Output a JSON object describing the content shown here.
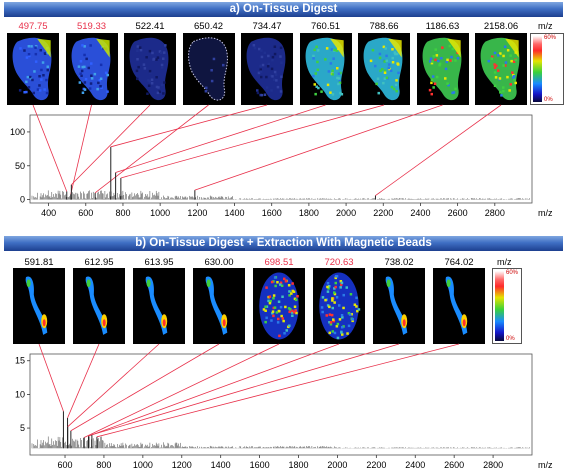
{
  "panel_a": {
    "title": "a)   On-Tissue Digest",
    "image_labels": [
      "497.75",
      "519.33",
      "522.41",
      "650.42",
      "734.47",
      "760.51",
      "788.66",
      "1186.63",
      "2158.06"
    ],
    "label_colors": [
      "#e8304a",
      "#e8304a",
      "#000000",
      "#000000",
      "#000000",
      "#000000",
      "#000000",
      "#000000",
      "#000000"
    ],
    "colorbar": {
      "unit": "m/z",
      "top": "60%",
      "bottom": "0%"
    }
  },
  "panel_b": {
    "title": "b)   On-Tissue Digest + Extraction With Magnetic Beads",
    "image_labels": [
      "591.81",
      "612.95",
      "613.95",
      "630.00",
      "698.51",
      "720.63",
      "738.02",
      "764.02"
    ],
    "label_colors": [
      "#000000",
      "#000000",
      "#000000",
      "#000000",
      "#e8304a",
      "#e8304a",
      "#000000",
      "#000000"
    ],
    "colorbar": {
      "unit": "m/z",
      "top": "60%",
      "bottom": "0%"
    }
  },
  "chart_data": [
    {
      "type": "line",
      "title": "",
      "xlabel": "m/z",
      "xlim": [
        300,
        3000
      ],
      "ylim": [
        -5,
        125
      ],
      "yticks": [
        0,
        50,
        100
      ],
      "xticks": [
        400,
        600,
        800,
        1000,
        1200,
        1400,
        1600,
        1800,
        2000,
        2200,
        2400,
        2600,
        2800
      ],
      "peaks": [
        {
          "x": 497.75,
          "y": 12
        },
        {
          "x": 519.33,
          "y": 8
        },
        {
          "x": 522.41,
          "y": 22
        },
        {
          "x": 650.42,
          "y": 10
        },
        {
          "x": 734.47,
          "y": 78
        },
        {
          "x": 760.51,
          "y": 40
        },
        {
          "x": 788.66,
          "y": 32
        },
        {
          "x": 1186.63,
          "y": 14
        },
        {
          "x": 2158.06,
          "y": 6
        }
      ]
    },
    {
      "type": "line",
      "title": "",
      "xlabel": "m/z",
      "xlim": [
        420,
        3000
      ],
      "ylim": [
        1,
        16
      ],
      "yticks": [
        5,
        10,
        15
      ],
      "xticks": [
        600,
        800,
        1000,
        1200,
        1400,
        1600,
        1800,
        2000,
        2200,
        2400,
        2600,
        2800
      ],
      "peaks": [
        {
          "x": 591.81,
          "y": 7.5
        },
        {
          "x": 612.95,
          "y": 6.5
        },
        {
          "x": 613.95,
          "y": 5.2
        },
        {
          "x": 630.0,
          "y": 4.6
        },
        {
          "x": 698.51,
          "y": 3.6
        },
        {
          "x": 720.63,
          "y": 3.8
        },
        {
          "x": 738.02,
          "y": 4.0
        },
        {
          "x": 764.02,
          "y": 3.7
        }
      ]
    }
  ]
}
